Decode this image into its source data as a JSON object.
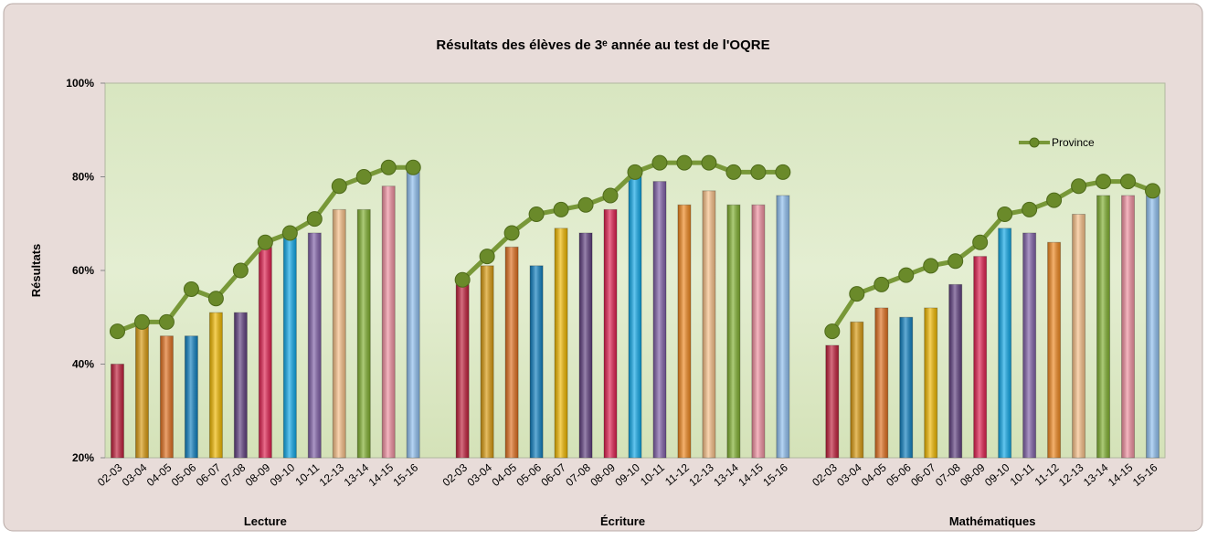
{
  "chart_data": {
    "type": "bar-line",
    "title": "Résultats des élèves de 3ᵉ année au test de l'OQRE",
    "y_label": "Résultats",
    "groups": [
      "Lecture",
      "Écriture",
      "Mathématiques"
    ],
    "categories": [
      "02-03",
      "03-04",
      "04-05",
      "05-06",
      "06-07",
      "07-08",
      "08-09",
      "09-10",
      "10-11",
      "12-13",
      "13-14",
      "14-15",
      "15-16",
      null,
      "02-03",
      "03-04",
      "04-05",
      "05-06",
      "06-07",
      "07-08",
      "08-09",
      "09-10",
      "10-11",
      "11-12",
      "12-13",
      "13-14",
      "14-15",
      "15-16",
      null,
      "02-03",
      "03-04",
      "04-05",
      "05-06",
      "06-07",
      "07-08",
      "08-09",
      "09-10",
      "10-11",
      "11-12",
      "12-13",
      "13-14",
      "14-15",
      "15-16"
    ],
    "values": [
      40,
      48,
      46,
      46,
      51,
      51,
      65,
      67,
      68,
      73,
      73,
      78,
      81,
      null,
      57,
      61,
      65,
      61,
      69,
      68,
      73,
      80,
      79,
      74,
      77,
      74,
      74,
      76,
      null,
      44,
      49,
      52,
      50,
      52,
      57,
      63,
      69,
      68,
      66,
      72,
      76,
      76,
      76
    ],
    "colors": [
      "#c0203c",
      "#d99a10",
      "#e07020",
      "#1080c0",
      "#f0b800",
      "#604080",
      "#e02050",
      "#10a8e8",
      "#8060a8",
      "#f8c088",
      "#80b030",
      "#f090a0",
      "#90c0f0",
      null,
      "#c0203c",
      "#d99a10",
      "#e07020",
      "#1080c0",
      "#f0b800",
      "#604080",
      "#e02050",
      "#10a8e8",
      "#8060a8",
      "#f08820",
      "#f8c088",
      "#80b030",
      "#f090a0",
      "#90c0f0",
      null,
      "#c0203c",
      "#d99a10",
      "#e07020",
      "#1080c0",
      "#f0b800",
      "#604080",
      "#e02050",
      "#10a8e8",
      "#8060a8",
      "#f08820",
      "#f8c088",
      "#80b030",
      "#f090a0",
      "#90c0f0"
    ],
    "series": [
      {
        "name": "Province",
        "color": "#789838",
        "values": [
          47,
          49,
          49,
          56,
          54,
          60,
          66,
          68,
          71,
          78,
          80,
          82,
          82,
          null,
          58,
          63,
          68,
          72,
          73,
          74,
          76,
          81,
          83,
          83,
          83,
          81,
          81,
          81,
          null,
          47,
          55,
          57,
          59,
          61,
          62,
          66,
          72,
          73,
          75,
          78,
          79,
          79,
          77
        ]
      }
    ],
    "ylim": [
      20,
      100
    ],
    "yticks": [
      {
        "value": 20,
        "label": "20%"
      },
      {
        "value": 40,
        "label": "40%"
      },
      {
        "value": 60,
        "label": "60%"
      },
      {
        "value": 80,
        "label": "80%"
      },
      {
        "value": 100,
        "label": "100%"
      }
    ],
    "legend": "upper right"
  }
}
